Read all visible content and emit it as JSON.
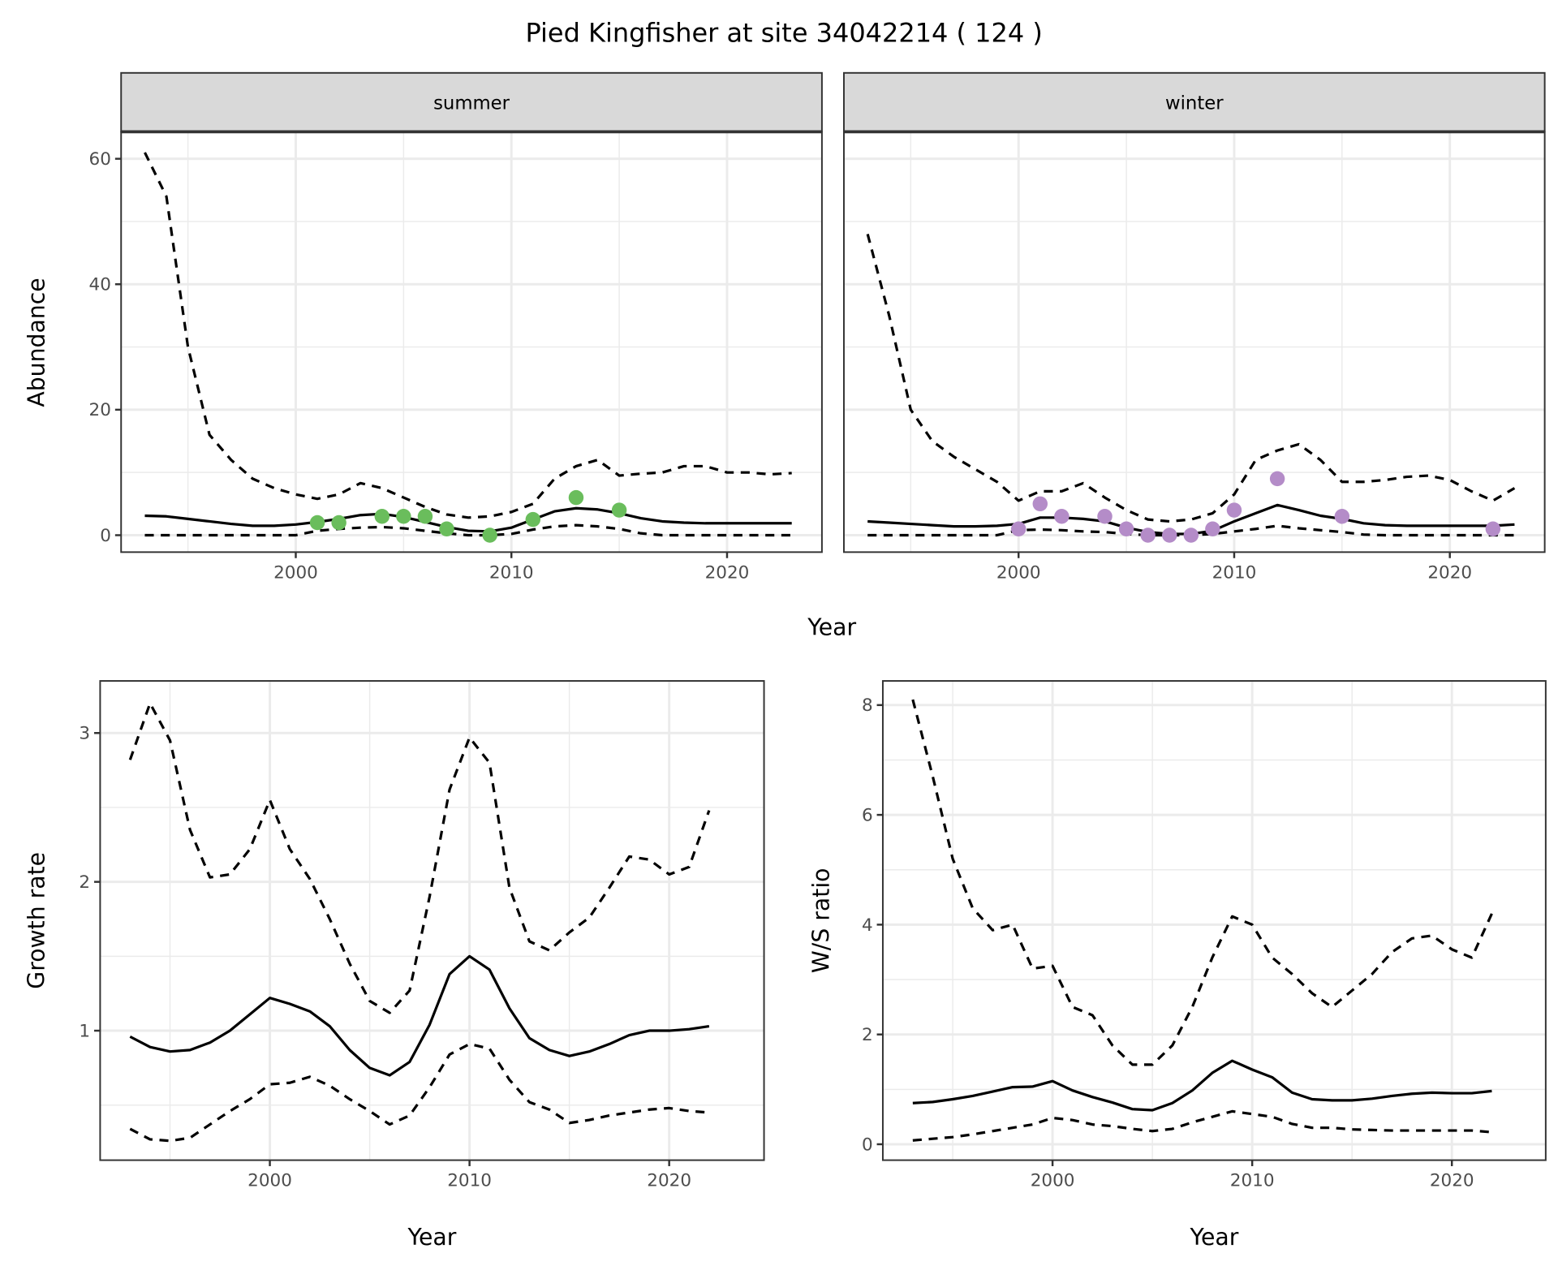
{
  "title": "Pied Kingfisher at site 34042214 ( 124 )",
  "chart_data": [
    {
      "type": "line",
      "facet": "summer",
      "xlabel": "Year",
      "ylabel": "Abundance",
      "xlim": [
        1991.9,
        2024.4
      ],
      "ylim": [
        -2.7,
        64.3
      ],
      "xticks": [
        2000,
        2010,
        2020
      ],
      "yticks": [
        0,
        20,
        40,
        60
      ],
      "grid": true,
      "point_color": "#6ABD5C",
      "x": [
        1993,
        1994,
        1995,
        1996,
        1997,
        1998,
        1999,
        2000,
        2001,
        2002,
        2003,
        2004,
        2005,
        2006,
        2007,
        2008,
        2009,
        2010,
        2011,
        2012,
        2013,
        2014,
        2015,
        2016,
        2017,
        2018,
        2019,
        2020,
        2021,
        2022,
        2023
      ],
      "series": [
        {
          "style": "solid",
          "values": [
            3.1,
            3.0,
            2.6,
            2.2,
            1.8,
            1.5,
            1.5,
            1.7,
            2.1,
            2.6,
            3.2,
            3.4,
            2.9,
            2.1,
            1.3,
            0.7,
            0.6,
            1.2,
            2.5,
            3.8,
            4.3,
            4.1,
            3.5,
            2.7,
            2.2,
            2.0,
            1.9,
            1.9,
            1.9,
            1.9,
            1.9
          ]
        },
        {
          "style": "dashed",
          "values": [
            61,
            54,
            30,
            16,
            12,
            9,
            7.5,
            6.5,
            5.8,
            6.5,
            8.3,
            7.5,
            6,
            4.5,
            3.3,
            2.8,
            3,
            3.7,
            5,
            9,
            11,
            12,
            9.5,
            9.8,
            10,
            11,
            11,
            10,
            10,
            9.7,
            9.9
          ]
        },
        {
          "style": "dashed",
          "values": [
            0,
            0,
            0,
            0,
            0,
            0,
            0,
            0,
            0.7,
            1,
            1.2,
            1.3,
            1.1,
            0.7,
            0.3,
            0,
            0,
            0.2,
            0.9,
            1.4,
            1.6,
            1.4,
            1,
            0.3,
            0,
            0,
            0,
            0,
            0,
            0,
            0
          ]
        }
      ],
      "points": {
        "x": [
          2001,
          2002,
          2004,
          2005,
          2006,
          2007,
          2009,
          2011,
          2013,
          2015
        ],
        "y": [
          2,
          2,
          3,
          3,
          3,
          1,
          0,
          2.5,
          6,
          4
        ]
      }
    },
    {
      "type": "line",
      "facet": "winter",
      "xlabel": "Year",
      "ylabel": "Abundance",
      "xlim": [
        1991.9,
        2024.4
      ],
      "ylim": [
        -2.7,
        64.3
      ],
      "xticks": [
        2000,
        2010,
        2020
      ],
      "yticks": [
        0,
        20,
        40,
        60
      ],
      "grid": true,
      "point_color": "#B48CC8",
      "x": [
        1993,
        1994,
        1995,
        1996,
        1997,
        1998,
        1999,
        2000,
        2001,
        2002,
        2003,
        2004,
        2005,
        2006,
        2007,
        2008,
        2009,
        2010,
        2011,
        2012,
        2013,
        2014,
        2015,
        2016,
        2017,
        2018,
        2019,
        2020,
        2021,
        2022,
        2023
      ],
      "series": [
        {
          "style": "solid",
          "values": [
            2.2,
            2.0,
            1.8,
            1.6,
            1.4,
            1.4,
            1.5,
            1.8,
            2.8,
            2.8,
            2.6,
            2.2,
            1.2,
            0.5,
            0.2,
            0.2,
            0.7,
            2.2,
            3.5,
            4.8,
            4.0,
            3.1,
            2.6,
            1.9,
            1.6,
            1.5,
            1.5,
            1.5,
            1.5,
            1.5,
            1.7
          ]
        },
        {
          "style": "dashed",
          "values": [
            48,
            35,
            20,
            15,
            12.5,
            10.5,
            8.5,
            5.5,
            7,
            7,
            8.3,
            6,
            4,
            2.5,
            2.2,
            2.5,
            3.5,
            6.5,
            12,
            13.5,
            14.5,
            12,
            8.5,
            8.5,
            8.8,
            9.3,
            9.5,
            8.8,
            7,
            5.5,
            7.5
          ]
        },
        {
          "style": "dashed",
          "values": [
            0,
            0,
            0,
            0,
            0,
            0,
            0,
            0.8,
            0.9,
            0.8,
            0.6,
            0.5,
            0.2,
            0,
            0,
            0,
            0.2,
            0.6,
            1.0,
            1.5,
            1.1,
            0.8,
            0.5,
            0.1,
            0,
            0,
            0,
            0,
            0,
            0,
            0
          ]
        }
      ],
      "points": {
        "x": [
          2000,
          2001,
          2002,
          2004,
          2005,
          2006,
          2007,
          2008,
          2009,
          2010,
          2012,
          2015,
          2022
        ],
        "y": [
          1,
          5,
          3,
          3,
          1,
          0,
          0,
          0,
          1,
          4,
          9,
          3,
          1
        ]
      }
    },
    {
      "type": "line",
      "xlabel": "Year",
      "ylabel": "Growth rate",
      "xlim": [
        1991.5,
        2024.75
      ],
      "ylim": [
        0.13,
        3.35
      ],
      "xticks": [
        2000,
        2010,
        2020
      ],
      "yticks": [
        1,
        2,
        3
      ],
      "grid": true,
      "x": [
        1993,
        1994,
        1995,
        1996,
        1997,
        1998,
        1999,
        2000,
        2001,
        2002,
        2003,
        2004,
        2005,
        2006,
        2007,
        2008,
        2009,
        2010,
        2011,
        2012,
        2013,
        2014,
        2015,
        2016,
        2017,
        2018,
        2019,
        2020,
        2021,
        2022
      ],
      "series": [
        {
          "style": "solid",
          "values": [
            0.96,
            0.89,
            0.86,
            0.87,
            0.92,
            1.0,
            1.11,
            1.22,
            1.18,
            1.13,
            1.03,
            0.87,
            0.75,
            0.7,
            0.79,
            1.04,
            1.38,
            1.5,
            1.41,
            1.15,
            0.95,
            0.87,
            0.83,
            0.86,
            0.91,
            0.97,
            1.0,
            1.0,
            1.01,
            1.03
          ]
        },
        {
          "style": "dashed",
          "values": [
            2.82,
            3.2,
            2.95,
            2.35,
            2.03,
            2.05,
            2.22,
            2.55,
            2.22,
            2.02,
            1.75,
            1.45,
            1.2,
            1.12,
            1.27,
            1.9,
            2.62,
            2.97,
            2.8,
            1.96,
            1.6,
            1.54,
            1.66,
            1.76,
            1.96,
            2.17,
            2.15,
            2.05,
            2.1,
            2.48
          ]
        },
        {
          "style": "dashed",
          "values": [
            0.34,
            0.27,
            0.26,
            0.28,
            0.37,
            0.46,
            0.54,
            0.64,
            0.65,
            0.69,
            0.63,
            0.54,
            0.46,
            0.37,
            0.43,
            0.62,
            0.84,
            0.91,
            0.88,
            0.67,
            0.52,
            0.47,
            0.38,
            0.4,
            0.43,
            0.45,
            0.47,
            0.48,
            0.46,
            0.45
          ]
        }
      ]
    },
    {
      "type": "line",
      "xlabel": "Year",
      "ylabel": "W/S ratio",
      "xlim": [
        1991.5,
        2024.7
      ],
      "ylim": [
        -0.29,
        8.44
      ],
      "xticks": [
        2000,
        2010,
        2020
      ],
      "yticks": [
        0,
        2,
        4,
        6,
        8
      ],
      "grid": true,
      "x": [
        1993,
        1994,
        1995,
        1996,
        1997,
        1998,
        1999,
        2000,
        2001,
        2002,
        2003,
        2004,
        2005,
        2006,
        2007,
        2008,
        2009,
        2010,
        2011,
        2012,
        2013,
        2014,
        2015,
        2016,
        2017,
        2018,
        2019,
        2020,
        2021,
        2022
      ],
      "series": [
        {
          "style": "solid",
          "values": [
            0.75,
            0.77,
            0.82,
            0.88,
            0.96,
            1.04,
            1.05,
            1.15,
            0.98,
            0.86,
            0.76,
            0.64,
            0.62,
            0.75,
            0.98,
            1.3,
            1.52,
            1.36,
            1.22,
            0.94,
            0.82,
            0.8,
            0.8,
            0.83,
            0.88,
            0.92,
            0.94,
            0.93,
            0.93,
            0.97
          ]
        },
        {
          "style": "dashed",
          "values": [
            8.1,
            6.7,
            5.2,
            4.3,
            3.9,
            4.0,
            3.2,
            3.25,
            2.5,
            2.35,
            1.8,
            1.45,
            1.45,
            1.8,
            2.5,
            3.4,
            4.15,
            4.0,
            3.4,
            3.1,
            2.75,
            2.5,
            2.8,
            3.1,
            3.5,
            3.75,
            3.8,
            3.55,
            3.4,
            4.2
          ]
        },
        {
          "style": "dashed",
          "values": [
            0.07,
            0.1,
            0.13,
            0.18,
            0.24,
            0.3,
            0.36,
            0.48,
            0.44,
            0.36,
            0.33,
            0.28,
            0.24,
            0.28,
            0.4,
            0.5,
            0.6,
            0.55,
            0.5,
            0.37,
            0.3,
            0.3,
            0.27,
            0.26,
            0.25,
            0.25,
            0.25,
            0.25,
            0.25,
            0.22
          ]
        }
      ]
    }
  ],
  "shared_xlabel_top": "Year"
}
